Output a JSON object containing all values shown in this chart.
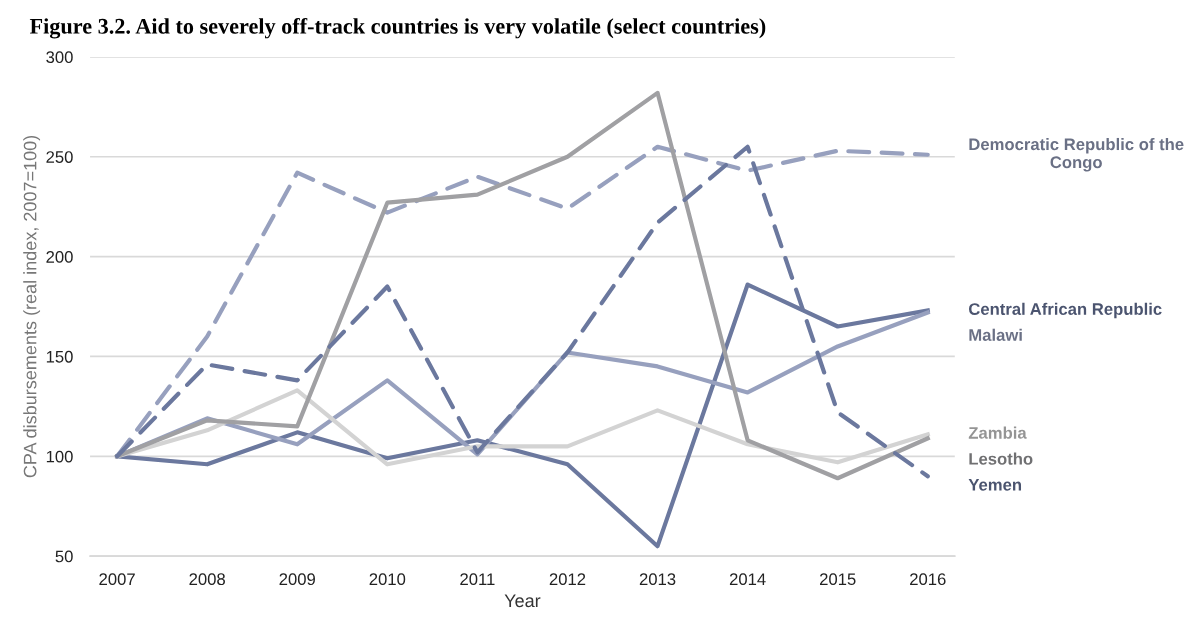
{
  "chart_data": {
    "type": "line",
    "title": "Figure 3.2. Aid to severely off-track countries is very volatile (select countries)",
    "xlabel": "Year",
    "ylabel": "CPA disbursements (real index, 2007=100)",
    "categories": [
      "2007",
      "2008",
      "2009",
      "2010",
      "2011",
      "2012",
      "2013",
      "2014",
      "2015",
      "2016"
    ],
    "ylim": [
      50,
      300
    ],
    "yticks": [
      50,
      100,
      150,
      200,
      250,
      300
    ],
    "grid": "y",
    "legend": false,
    "marker": "none",
    "series": [
      {
        "name": "Democratic Republic of the Congo",
        "color": "#97a0be",
        "line_style": "dashed",
        "values": [
          100,
          160,
          242,
          222,
          240,
          224,
          255,
          243,
          253,
          251
        ]
      },
      {
        "name": "Central African Republic",
        "color": "#6b789e",
        "line_style": "solid",
        "values": [
          100,
          96,
          112,
          99,
          108,
          96,
          55,
          186,
          165,
          173
        ]
      },
      {
        "name": "Malawi",
        "color": "#97a0be",
        "line_style": "solid",
        "values": [
          100,
          119,
          106,
          138,
          101,
          152,
          145,
          132,
          155,
          172
        ]
      },
      {
        "name": "Zambia",
        "color": "#d3d3d3",
        "line_style": "solid",
        "values": [
          100,
          113,
          133,
          96,
          105,
          105,
          123,
          106,
          97,
          111
        ]
      },
      {
        "name": "Lesotho",
        "color": "#a0a0a3",
        "line_style": "solid",
        "values": [
          100,
          118,
          115,
          227,
          231,
          250,
          282,
          108,
          89,
          109
        ]
      },
      {
        "name": "Yemen",
        "color": "#6b789e",
        "line_style": "dashed",
        "values": [
          100,
          146,
          138,
          185,
          102,
          152,
          217,
          255,
          122,
          90
        ]
      }
    ]
  }
}
